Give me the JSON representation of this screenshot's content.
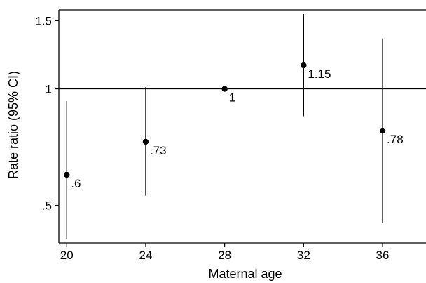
{
  "chart_data": {
    "type": "scatter",
    "xlabel": "Maternal age",
    "ylabel": "Rate ratio (95% CI)",
    "y_scale": "log",
    "xlim": [
      19.6,
      38.2
    ],
    "ylim": [
      0.4,
      1.6
    ],
    "x_ticks": [
      20,
      24,
      28,
      32,
      36
    ],
    "x_tick_labels": [
      "20",
      "24",
      "28",
      "32",
      "36"
    ],
    "y_ticks": [
      0.5,
      1,
      1.5
    ],
    "y_tick_labels": [
      ".5",
      "1",
      "1.5"
    ],
    "reference_line": 1,
    "grid": false,
    "legend": "none",
    "points": [
      {
        "x": 20,
        "y": 0.6,
        "lower": 0.41,
        "upper": 0.93,
        "label": ".6"
      },
      {
        "x": 24,
        "y": 0.73,
        "lower": 0.53,
        "upper": 1.01,
        "label": ".73"
      },
      {
        "x": 28,
        "y": 1,
        "lower": null,
        "upper": null,
        "label": "1"
      },
      {
        "x": 32,
        "y": 1.15,
        "lower": 0.85,
        "upper": 1.56,
        "label": "1.15"
      },
      {
        "x": 36,
        "y": 0.78,
        "lower": 0.45,
        "upper": 1.35,
        "label": ".78"
      }
    ]
  }
}
